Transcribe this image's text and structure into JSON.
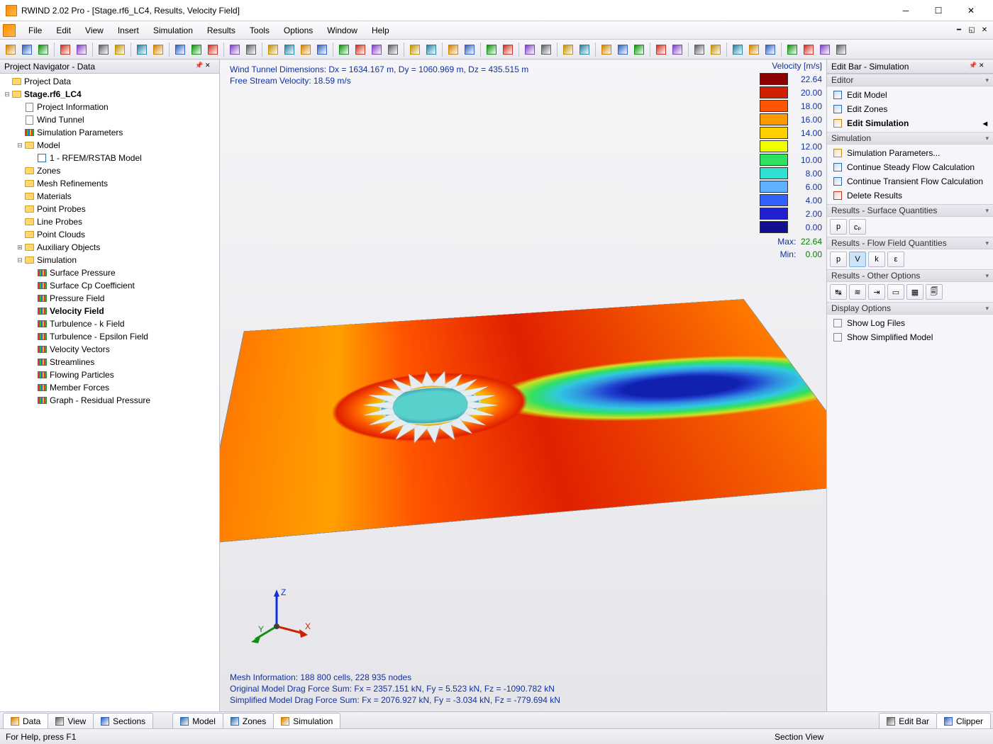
{
  "window": {
    "title": "RWIND 2.02 Pro - [Stage.rf6_LC4, Results, Velocity Field]"
  },
  "menu": {
    "items": [
      "File",
      "Edit",
      "View",
      "Insert",
      "Simulation",
      "Results",
      "Tools",
      "Options",
      "Window",
      "Help"
    ]
  },
  "navigator": {
    "title": "Project Navigator - Data",
    "tree": [
      {
        "label": "Project Data",
        "depth": 0,
        "icon": "folder",
        "expander": ""
      },
      {
        "label": "Stage.rf6_LC4",
        "depth": 0,
        "icon": "folder-open",
        "expander": "−",
        "bold": true
      },
      {
        "label": "Project Information",
        "depth": 1,
        "icon": "page",
        "expander": ""
      },
      {
        "label": "Wind Tunnel",
        "depth": 1,
        "icon": "page",
        "expander": ""
      },
      {
        "label": "Simulation Parameters",
        "depth": 1,
        "icon": "sim",
        "expander": ""
      },
      {
        "label": "Model",
        "depth": 1,
        "icon": "folder-open",
        "expander": "−"
      },
      {
        "label": "1 - RFEM/RSTAB Model",
        "depth": 2,
        "icon": "model",
        "expander": ""
      },
      {
        "label": "Zones",
        "depth": 1,
        "icon": "folder",
        "expander": ""
      },
      {
        "label": "Mesh Refinements",
        "depth": 1,
        "icon": "folder",
        "expander": ""
      },
      {
        "label": "Materials",
        "depth": 1,
        "icon": "folder",
        "expander": ""
      },
      {
        "label": "Point Probes",
        "depth": 1,
        "icon": "folder",
        "expander": ""
      },
      {
        "label": "Line Probes",
        "depth": 1,
        "icon": "folder",
        "expander": ""
      },
      {
        "label": "Point Clouds",
        "depth": 1,
        "icon": "folder",
        "expander": ""
      },
      {
        "label": "Auxiliary Objects",
        "depth": 1,
        "icon": "folder",
        "expander": "+"
      },
      {
        "label": "Simulation",
        "depth": 1,
        "icon": "folder-open",
        "expander": "−"
      },
      {
        "label": "Surface Pressure",
        "depth": 2,
        "icon": "sim",
        "expander": ""
      },
      {
        "label": "Surface Cp Coefficient",
        "depth": 2,
        "icon": "sim",
        "expander": ""
      },
      {
        "label": "Pressure Field",
        "depth": 2,
        "icon": "sim",
        "expander": ""
      },
      {
        "label": "Velocity Field",
        "depth": 2,
        "icon": "sim",
        "expander": "",
        "bold": true
      },
      {
        "label": "Turbulence - k Field",
        "depth": 2,
        "icon": "sim",
        "expander": ""
      },
      {
        "label": "Turbulence - Epsilon Field",
        "depth": 2,
        "icon": "sim",
        "expander": ""
      },
      {
        "label": "Velocity Vectors",
        "depth": 2,
        "icon": "sim",
        "expander": ""
      },
      {
        "label": "Streamlines",
        "depth": 2,
        "icon": "sim",
        "expander": ""
      },
      {
        "label": "Flowing Particles",
        "depth": 2,
        "icon": "sim",
        "expander": ""
      },
      {
        "label": "Member Forces",
        "depth": 2,
        "icon": "sim",
        "expander": ""
      },
      {
        "label": "Graph - Residual Pressure",
        "depth": 2,
        "icon": "sim",
        "expander": ""
      }
    ]
  },
  "viewport": {
    "info1": "Wind Tunnel Dimensions: Dx = 1634.167 m, Dy = 1060.969 m, Dz = 435.515 m",
    "info2": "Free Stream Velocity: 18.59 m/s",
    "mesh_info": "Mesh Information: 188 800 cells, 228 935 nodes",
    "drag1": "Original Model Drag Force Sum: Fx = 2357.151 kN, Fy = 5.523 kN, Fz = -1090.782 kN",
    "drag2": "Simplified Model Drag Force Sum: Fx = 2076.927 kN, Fy = -3.034 kN, Fz = -779.694 kN"
  },
  "legend": {
    "title": "Velocity [m/s]",
    "entries": [
      {
        "value": "22.64",
        "color": "#8b0000"
      },
      {
        "value": "20.00",
        "color": "#d02000"
      },
      {
        "value": "18.00",
        "color": "#ff5500"
      },
      {
        "value": "16.00",
        "color": "#ff9900"
      },
      {
        "value": "14.00",
        "color": "#ffd000"
      },
      {
        "value": "12.00",
        "color": "#eeff00"
      },
      {
        "value": "10.00",
        "color": "#30e060"
      },
      {
        "value": "8.00",
        "color": "#30e0d0"
      },
      {
        "value": "6.00",
        "color": "#60b0ff"
      },
      {
        "value": "4.00",
        "color": "#3060ff"
      },
      {
        "value": "2.00",
        "color": "#2020d0"
      },
      {
        "value": "0.00",
        "color": "#101090"
      }
    ],
    "max_label": "Max:",
    "max_value": "22.64",
    "min_label": "Min:",
    "min_value": "0.00"
  },
  "editbar": {
    "title": "Edit Bar - Simulation",
    "sections": {
      "editor": {
        "header": "Editor",
        "items": [
          {
            "label": "Edit Model",
            "icon_color": "#2b6cb0"
          },
          {
            "label": "Edit Zones",
            "icon_color": "#2b6cb0"
          },
          {
            "label": "Edit Simulation",
            "icon_color": "#d08000",
            "bold": true,
            "arrow": true
          }
        ]
      },
      "simulation": {
        "header": "Simulation",
        "items": [
          {
            "label": "Simulation Parameters...",
            "icon_color": "#cc8800"
          },
          {
            "label": "Continue Steady Flow Calculation",
            "icon_color": "#2b6cb0"
          },
          {
            "label": "Continue Transient Flow Calculation",
            "icon_color": "#2b6cb0"
          },
          {
            "label": "Delete Results",
            "icon_color": "#cc3020"
          }
        ]
      },
      "surface": {
        "header": "Results - Surface Quantities",
        "buttons": [
          "p",
          "cₚ"
        ]
      },
      "flow": {
        "header": "Results - Flow Field Quantities",
        "buttons": [
          "p",
          "V",
          "k",
          "ε"
        ],
        "active_index": 1
      },
      "other": {
        "header": "Results - Other Options",
        "button_count": 6
      },
      "display": {
        "header": "Display Options",
        "items": [
          {
            "label": "Show Log Files"
          },
          {
            "label": "Show Simplified Model"
          }
        ]
      }
    }
  },
  "bottom_tabs": {
    "left": [
      {
        "label": "Data",
        "icon_color": "#d08000",
        "active": true
      },
      {
        "label": "View",
        "icon_color": "#606060"
      },
      {
        "label": "Sections",
        "icon_color": "#3060c0"
      }
    ],
    "center": [
      {
        "label": "Model",
        "icon_color": "#2b6cb0"
      },
      {
        "label": "Zones",
        "icon_color": "#2b6cb0"
      },
      {
        "label": "Simulation",
        "icon_color": "#d08000",
        "active": true
      }
    ],
    "right": [
      {
        "label": "Edit Bar",
        "icon_color": "#606060"
      },
      {
        "label": "Clipper",
        "icon_color": "#3060c0",
        "active": true
      }
    ]
  },
  "statusbar": {
    "help": "For Help, press F1",
    "mode": "Section View"
  },
  "toolbar": {
    "groups": [
      3,
      2,
      2,
      2,
      3,
      2,
      4,
      4,
      2,
      2,
      2,
      2,
      2,
      3,
      2,
      2,
      3,
      4
    ]
  },
  "axes": {
    "x": "X",
    "y": "Y",
    "z": "Z"
  },
  "styling": {
    "turbine_blades": 22,
    "accent_blue": "#1030a0",
    "panel_bg": "#f6f6fa"
  }
}
